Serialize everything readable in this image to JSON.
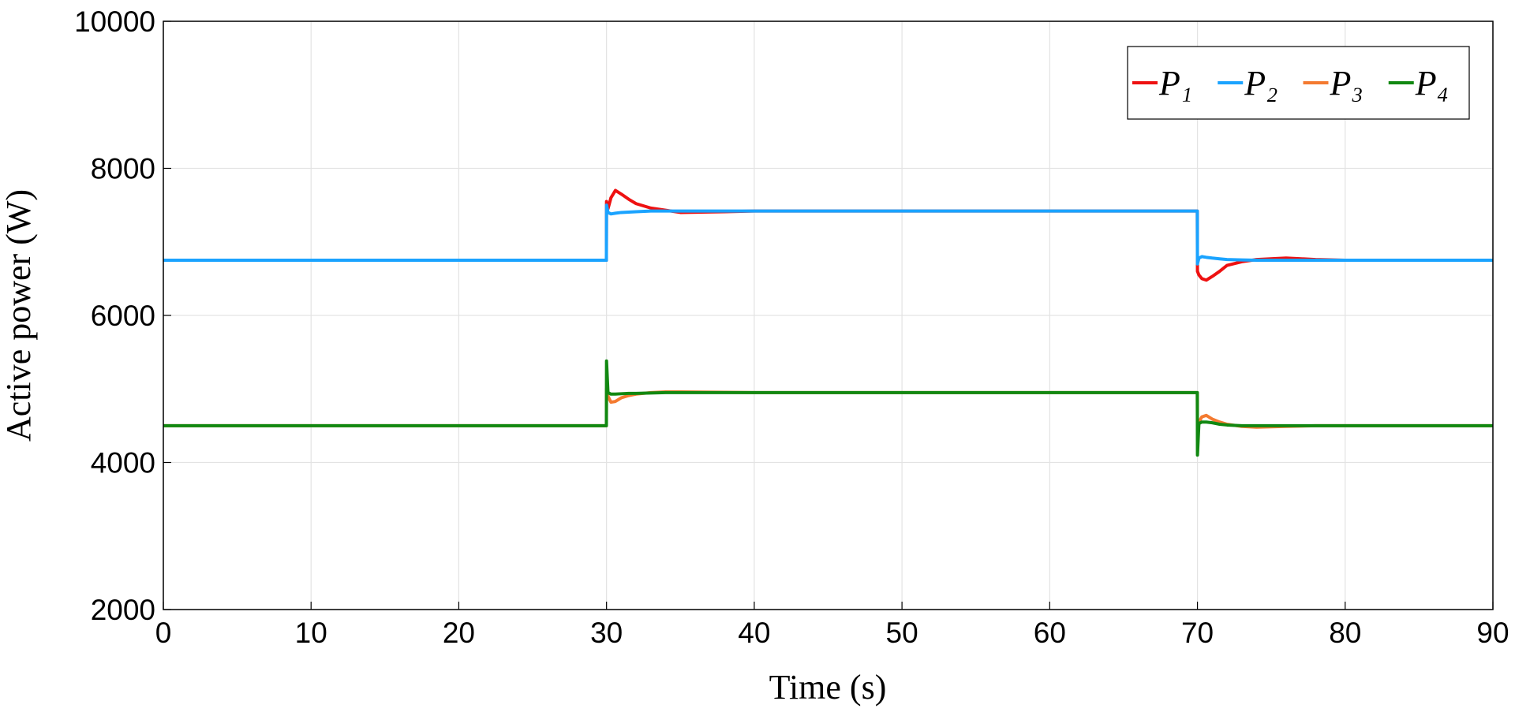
{
  "chart_data": {
    "type": "line",
    "xlabel": "Time (s)",
    "ylabel": "Active power (W)",
    "x": [
      0,
      29.99,
      30,
      30.1,
      30.3,
      30.6,
      31,
      31.5,
      32,
      33,
      34,
      35,
      38,
      40,
      50,
      60,
      69.99,
      70,
      70.1,
      70.3,
      70.6,
      71,
      71.5,
      72,
      73,
      74,
      76,
      78,
      80,
      90
    ],
    "series": [
      {
        "name": "P₁",
        "color": "#ee1111",
        "values": [
          6750,
          6750,
          7550,
          7450,
          7600,
          7700,
          7650,
          7580,
          7520,
          7460,
          7430,
          7400,
          7410,
          7420,
          7420,
          7420,
          7420,
          6600,
          6550,
          6500,
          6480,
          6530,
          6600,
          6680,
          6730,
          6760,
          6780,
          6760,
          6750,
          6750
        ]
      },
      {
        "name": "P₂",
        "color": "#1aa3ff",
        "values": [
          6750,
          6750,
          7500,
          7400,
          7380,
          7390,
          7400,
          7405,
          7410,
          7420,
          7420,
          7420,
          7420,
          7420,
          7420,
          7420,
          7420,
          6700,
          6780,
          6800,
          6790,
          6780,
          6770,
          6760,
          6755,
          6750,
          6750,
          6750,
          6750,
          6750
        ]
      },
      {
        "name": "P₃",
        "color": "#f47a30",
        "values": [
          4500,
          4500,
          5000,
          4900,
          4820,
          4830,
          4880,
          4910,
          4930,
          4950,
          4960,
          4960,
          4955,
          4950,
          4950,
          4950,
          4950,
          4500,
          4550,
          4620,
          4640,
          4590,
          4550,
          4520,
          4490,
          4480,
          4490,
          4500,
          4500,
          4500
        ]
      },
      {
        "name": "P₄",
        "color": "#118811",
        "values": [
          4500,
          4500,
          5380,
          4950,
          4930,
          4930,
          4935,
          4940,
          4940,
          4945,
          4950,
          4950,
          4950,
          4950,
          4950,
          4950,
          4950,
          4100,
          4530,
          4550,
          4550,
          4540,
          4520,
          4510,
          4500,
          4500,
          4500,
          4500,
          4500,
          4500
        ]
      }
    ],
    "xlim": [
      0,
      90
    ],
    "xticks": [
      0,
      10,
      20,
      30,
      40,
      50,
      60,
      70,
      80,
      90
    ],
    "ylim": [
      2000,
      10000
    ],
    "yticks": [
      2000,
      4000,
      6000,
      8000,
      10000
    ],
    "grid": true,
    "legend": "upper right"
  }
}
